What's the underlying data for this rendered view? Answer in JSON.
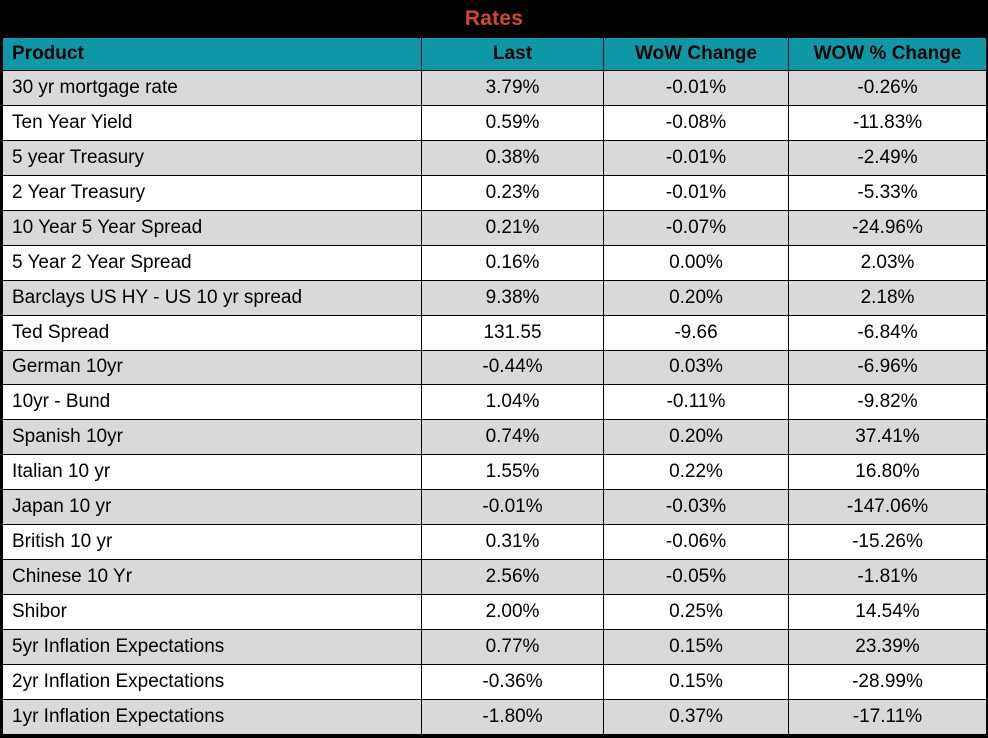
{
  "title": "Rates",
  "colors": {
    "title_text": "#d3492d",
    "title_bg": "#000000",
    "header_bg": "#0e97a7",
    "row_alt_bg": "#d9d9d9",
    "row_bg": "#ffffff",
    "grid": "#000000"
  },
  "chart_data": {
    "type": "table",
    "title": "Rates",
    "columns": [
      "Product",
      "Last",
      "WoW Change",
      "WOW % Change"
    ],
    "rows": [
      {
        "product": "30 yr mortgage rate",
        "last": "3.79%",
        "wow_change": "-0.01%",
        "wow_pct_change": "-0.26%"
      },
      {
        "product": "Ten Year Yield",
        "last": "0.59%",
        "wow_change": "-0.08%",
        "wow_pct_change": "-11.83%"
      },
      {
        "product": "5 year Treasury",
        "last": "0.38%",
        "wow_change": "-0.01%",
        "wow_pct_change": "-2.49%"
      },
      {
        "product": "2 Year Treasury",
        "last": "0.23%",
        "wow_change": "-0.01%",
        "wow_pct_change": "-5.33%"
      },
      {
        "product": "10 Year 5 Year Spread",
        "last": "0.21%",
        "wow_change": "-0.07%",
        "wow_pct_change": "-24.96%"
      },
      {
        "product": "5 Year 2 Year Spread",
        "last": "0.16%",
        "wow_change": "0.00%",
        "wow_pct_change": "2.03%"
      },
      {
        "product": "Barclays US HY - US 10 yr spread",
        "last": "9.38%",
        "wow_change": "0.20%",
        "wow_pct_change": "2.18%"
      },
      {
        "product": "Ted Spread",
        "last": "131.55",
        "wow_change": "-9.66",
        "wow_pct_change": "-6.84%"
      },
      {
        "product": "German 10yr",
        "last": "-0.44%",
        "wow_change": "0.03%",
        "wow_pct_change": "-6.96%"
      },
      {
        "product": "10yr - Bund",
        "last": "1.04%",
        "wow_change": "-0.11%",
        "wow_pct_change": "-9.82%"
      },
      {
        "product": "Spanish 10yr",
        "last": "0.74%",
        "wow_change": "0.20%",
        "wow_pct_change": "37.41%"
      },
      {
        "product": "Italian 10 yr",
        "last": "1.55%",
        "wow_change": "0.22%",
        "wow_pct_change": "16.80%"
      },
      {
        "product": "Japan 10 yr",
        "last": "-0.01%",
        "wow_change": "-0.03%",
        "wow_pct_change": "-147.06%"
      },
      {
        "product": "British 10 yr",
        "last": "0.31%",
        "wow_change": "-0.06%",
        "wow_pct_change": "-15.26%"
      },
      {
        "product": "Chinese 10 Yr",
        "last": "2.56%",
        "wow_change": "-0.05%",
        "wow_pct_change": "-1.81%"
      },
      {
        "product": "Shibor",
        "last": "2.00%",
        "wow_change": "0.25%",
        "wow_pct_change": "14.54%"
      },
      {
        "product": "5yr Inflation Expectations",
        "last": "0.77%",
        "wow_change": "0.15%",
        "wow_pct_change": "23.39%"
      },
      {
        "product": "2yr Inflation Expectations",
        "last": "-0.36%",
        "wow_change": "0.15%",
        "wow_pct_change": "-28.99%"
      },
      {
        "product": "1yr Inflation Expectations",
        "last": "-1.80%",
        "wow_change": "0.37%",
        "wow_pct_change": "-17.11%"
      }
    ]
  }
}
